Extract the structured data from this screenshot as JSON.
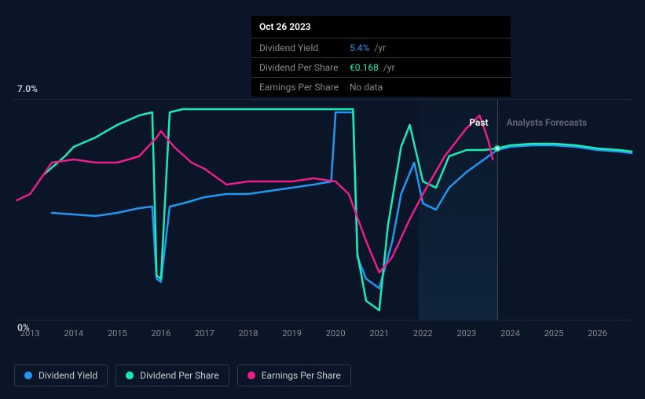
{
  "tooltip": {
    "date": "Oct 26 2023",
    "rows": [
      {
        "label": "Dividend Yield",
        "value": "5.4%",
        "suffix": "/yr",
        "color": "blue"
      },
      {
        "label": "Dividend Per Share",
        "value": "€0.168",
        "suffix": "/yr",
        "color": "teal"
      },
      {
        "label": "Earnings Per Share",
        "value": "No data",
        "suffix": "",
        "color": "muted"
      }
    ]
  },
  "chart": {
    "type": "line",
    "background_color": "#0a1628",
    "grid_color": "#1a2a3a",
    "ylim": [
      0,
      7.0
    ],
    "y_top_label": "7.0%",
    "y_bottom_label": "0%",
    "x_years": [
      2013,
      2014,
      2015,
      2016,
      2017,
      2018,
      2019,
      2020,
      2021,
      2022,
      2023,
      2024,
      2025,
      2026
    ],
    "x_range": [
      2012.6,
      2026.8
    ],
    "past_forecast_divider_year": 2023.7,
    "past_fill_start_year": 2021.9,
    "section_labels": {
      "past": "Past",
      "forecast": "Analysts Forecasts"
    },
    "series": [
      {
        "name": "Dividend Yield",
        "color": "#2196f3",
        "line_width": 2.5,
        "points": [
          [
            2013.5,
            3.4
          ],
          [
            2014,
            3.35
          ],
          [
            2014.5,
            3.3
          ],
          [
            2015,
            3.4
          ],
          [
            2015.5,
            3.55
          ],
          [
            2015.8,
            3.6
          ],
          [
            2015.9,
            1.3
          ],
          [
            2016.0,
            1.2
          ],
          [
            2016.2,
            3.6
          ],
          [
            2016.5,
            3.7
          ],
          [
            2017,
            3.9
          ],
          [
            2017.5,
            4.0
          ],
          [
            2018,
            4.0
          ],
          [
            2018.5,
            4.1
          ],
          [
            2019,
            4.2
          ],
          [
            2019.5,
            4.3
          ],
          [
            2019.9,
            4.4
          ],
          [
            2020.0,
            6.6
          ],
          [
            2020.4,
            6.6
          ],
          [
            2020.5,
            2.0
          ],
          [
            2020.7,
            1.3
          ],
          [
            2021,
            1.0
          ],
          [
            2021.3,
            2.5
          ],
          [
            2021.5,
            4.0
          ],
          [
            2021.8,
            5.0
          ],
          [
            2022.0,
            3.7
          ],
          [
            2022.3,
            3.5
          ],
          [
            2022.6,
            4.2
          ],
          [
            2023.0,
            4.7
          ],
          [
            2023.5,
            5.2
          ],
          [
            2023.7,
            5.4
          ],
          [
            2024.0,
            5.5
          ],
          [
            2024.5,
            5.55
          ],
          [
            2025.0,
            5.55
          ],
          [
            2025.5,
            5.5
          ],
          [
            2026.0,
            5.4
          ],
          [
            2026.5,
            5.35
          ],
          [
            2026.8,
            5.3
          ]
        ]
      },
      {
        "name": "Dividend Per Share",
        "color": "#1de9b6",
        "line_width": 2.5,
        "points": [
          [
            2013.3,
            4.6
          ],
          [
            2013.8,
            5.2
          ],
          [
            2014.0,
            5.5
          ],
          [
            2014.5,
            5.8
          ],
          [
            2015.0,
            6.2
          ],
          [
            2015.5,
            6.5
          ],
          [
            2015.8,
            6.6
          ],
          [
            2015.9,
            1.4
          ],
          [
            2016.0,
            1.3
          ],
          [
            2016.2,
            6.6
          ],
          [
            2016.5,
            6.7
          ],
          [
            2017.0,
            6.7
          ],
          [
            2017.5,
            6.7
          ],
          [
            2018.0,
            6.7
          ],
          [
            2018.5,
            6.7
          ],
          [
            2019.0,
            6.7
          ],
          [
            2019.5,
            6.7
          ],
          [
            2019.9,
            6.7
          ],
          [
            2020.0,
            6.7
          ],
          [
            2020.4,
            6.7
          ],
          [
            2020.5,
            2.1
          ],
          [
            2020.7,
            0.6
          ],
          [
            2021.0,
            0.3
          ],
          [
            2021.2,
            3.0
          ],
          [
            2021.5,
            5.5
          ],
          [
            2021.7,
            6.2
          ],
          [
            2022.0,
            4.4
          ],
          [
            2022.3,
            4.2
          ],
          [
            2022.6,
            5.2
          ],
          [
            2023.0,
            5.4
          ],
          [
            2023.4,
            5.4
          ],
          [
            2023.7,
            5.45
          ],
          [
            2024.0,
            5.55
          ],
          [
            2024.5,
            5.6
          ],
          [
            2025.0,
            5.6
          ],
          [
            2025.5,
            5.55
          ],
          [
            2026.0,
            5.45
          ],
          [
            2026.5,
            5.4
          ],
          [
            2026.8,
            5.35
          ]
        ]
      },
      {
        "name": "Earnings Per Share",
        "color": "#e91e88",
        "line_width": 2.5,
        "points": [
          [
            2012.7,
            3.8
          ],
          [
            2013.0,
            4.0
          ],
          [
            2013.5,
            5.0
          ],
          [
            2014.0,
            5.1
          ],
          [
            2014.5,
            5.0
          ],
          [
            2015.0,
            5.0
          ],
          [
            2015.5,
            5.2
          ],
          [
            2015.9,
            5.8
          ],
          [
            2016.0,
            6.0
          ],
          [
            2016.3,
            5.5
          ],
          [
            2016.7,
            5.0
          ],
          [
            2017.0,
            4.8
          ],
          [
            2017.5,
            4.3
          ],
          [
            2018.0,
            4.4
          ],
          [
            2018.5,
            4.4
          ],
          [
            2019.0,
            4.4
          ],
          [
            2019.5,
            4.5
          ],
          [
            2020.0,
            4.4
          ],
          [
            2020.3,
            4.0
          ],
          [
            2020.7,
            2.5
          ],
          [
            2021.0,
            1.5
          ],
          [
            2021.3,
            2.0
          ],
          [
            2021.7,
            3.2
          ],
          [
            2022.0,
            4.0
          ],
          [
            2022.5,
            5.2
          ],
          [
            2023.0,
            6.1
          ],
          [
            2023.3,
            6.5
          ],
          [
            2023.5,
            5.7
          ],
          [
            2023.6,
            5.1
          ]
        ]
      }
    ],
    "marker": {
      "year": 2023.7,
      "y": 5.45,
      "border_color": "#1de9b6"
    },
    "legend": [
      {
        "label": "Dividend Yield",
        "color": "#2196f3"
      },
      {
        "label": "Dividend Per Share",
        "color": "#1de9b6"
      },
      {
        "label": "Earnings Per Share",
        "color": "#e91e88"
      }
    ]
  }
}
